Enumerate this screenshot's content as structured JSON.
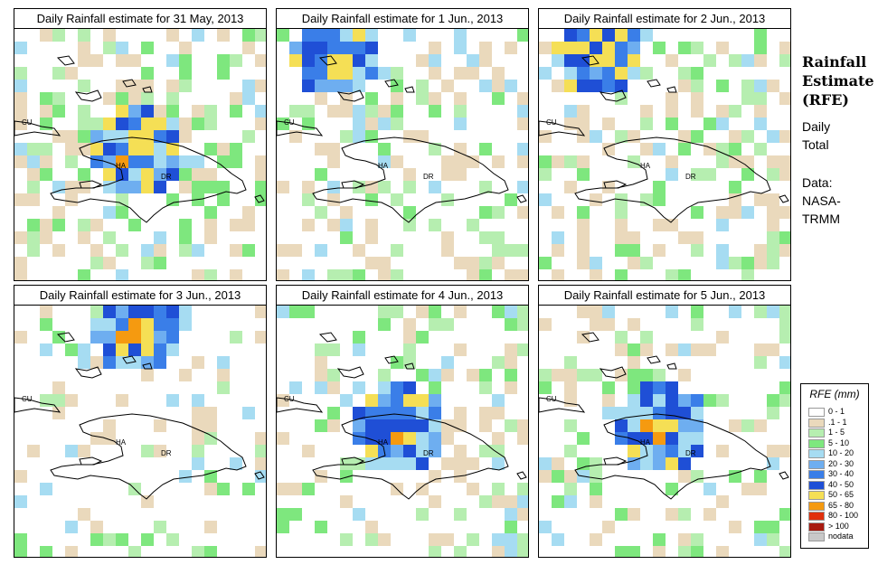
{
  "panels": [
    {
      "title": "Daily Rainfall estimate for  31 May, 2013",
      "seed": 11,
      "wet": 0.4,
      "focus": "HA"
    },
    {
      "title": "Daily Rainfall estimate for  1 Jun., 2013",
      "seed": 23,
      "wet": 0.3,
      "focus": "N"
    },
    {
      "title": "Daily Rainfall estimate for  2 Jun., 2013",
      "seed": 37,
      "wet": 0.33,
      "focus": "N"
    },
    {
      "title": "Daily Rainfall estimate for  3 Jun., 2013",
      "seed": 41,
      "wet": 0.22,
      "focus": "NE"
    },
    {
      "title": "Daily Rainfall estimate for  4 Jun., 2013",
      "seed": 53,
      "wet": 0.3,
      "focus": "HA"
    },
    {
      "title": "Daily Rainfall estimate for  5 Jun., 2013",
      "seed": 67,
      "wet": 0.26,
      "focus": "HA"
    }
  ],
  "map_labels": {
    "cu": "CU",
    "ha": "HA",
    "dr": "DR"
  },
  "sidebar": {
    "title_line1": "Rainfall",
    "title_line2": "Estimate",
    "title_line3": "(RFE)",
    "daily": "Daily",
    "total": "Total",
    "data_label": "Data:",
    "source1": "NASA-",
    "source2": "TRMM"
  },
  "legend": {
    "title": "RFE (mm)",
    "items": [
      {
        "label": "0 - 1",
        "color": "#ffffff"
      },
      {
        "label": ".1 - 1",
        "color": "#ead9bc"
      },
      {
        "label": "1 - 5",
        "color": "#b6eeb0"
      },
      {
        "label": "5 - 10",
        "color": "#7ee77e"
      },
      {
        "label": "10 - 20",
        "color": "#a6dcf2"
      },
      {
        "label": "20 - 30",
        "color": "#6eaef0"
      },
      {
        "label": "30 - 40",
        "color": "#3a7ee8"
      },
      {
        "label": "40 - 50",
        "color": "#1f4fd6"
      },
      {
        "label": "50 - 65",
        "color": "#f5df55"
      },
      {
        "label": "65 - 80",
        "color": "#f59a10"
      },
      {
        "label": "80 - 100",
        "color": "#e0300c"
      },
      {
        "label": "> 100",
        "color": "#a81a10"
      },
      {
        "label": "nodata",
        "color": "#c8c8c8"
      }
    ]
  }
}
